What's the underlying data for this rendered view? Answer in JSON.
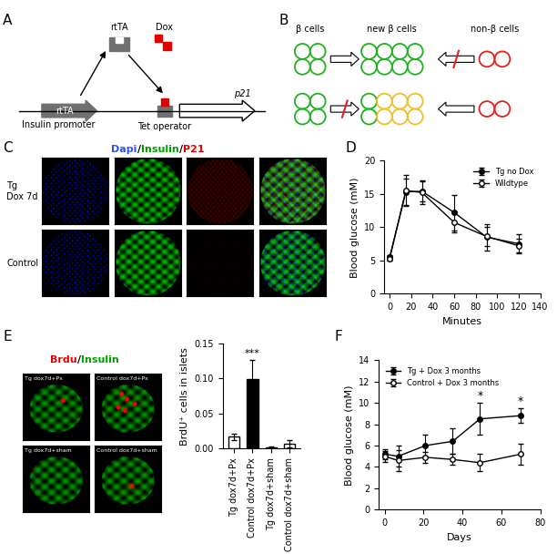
{
  "panel_labels": [
    "A",
    "B",
    "C",
    "D",
    "E",
    "F"
  ],
  "diagram_a": {
    "gene_box": "rtTA",
    "promoter_label": "Insulin promoter",
    "protein": "rtTA",
    "drug": "Dox",
    "operator_label": "Tet operator",
    "target_gene": "p21"
  },
  "diagram_b": {
    "labels": [
      "β cells",
      "new β cells",
      "non-β cells"
    ]
  },
  "image_panel_c": {
    "stain_title": [
      {
        "text": "Dapi",
        "color": "#3050ff"
      },
      {
        "text": "/",
        "color": "#000000"
      },
      {
        "text": "Insulin",
        "color": "#00a000"
      },
      {
        "text": "/",
        "color": "#000000"
      },
      {
        "text": "P21",
        "color": "#e00000"
      }
    ],
    "row_labels": [
      [
        "Tg",
        "Dox 7d"
      ],
      [
        "Control"
      ]
    ]
  },
  "image_panel_e": {
    "stain_title": [
      {
        "text": "Brdu",
        "color": "#e00000"
      },
      {
        "text": "/",
        "color": "#000000"
      },
      {
        "text": "Insulin",
        "color": "#00a000"
      }
    ],
    "image_labels": [
      "Tg dox7d+Px",
      "Control dox7d+Px",
      "Tg dox7d+sham",
      "Control dox7d+sham"
    ]
  },
  "chart_data": [
    {
      "type": "line",
      "xlabel": "Minutes",
      "ylabel": "Blood glucose (mM)",
      "x": [
        0,
        15,
        30,
        60,
        90,
        120
      ],
      "series": [
        {
          "name": "Tg no Dox",
          "color": "#000000",
          "marker": "filled_circle",
          "values": [
            5.5,
            15.3,
            15.4,
            12.2,
            8.5,
            7.5
          ],
          "errors": [
            0.3,
            2.0,
            1.5,
            2.7,
            2.0,
            1.5
          ]
        },
        {
          "name": "Wildtype",
          "color": "#000000",
          "marker": "open_circle",
          "values": [
            5.3,
            15.5,
            15.2,
            10.7,
            8.6,
            7.2
          ],
          "errors": [
            0.3,
            2.3,
            1.8,
            1.5,
            1.5,
            1.0
          ]
        }
      ],
      "xlim": [
        -5,
        140
      ],
      "ylim": [
        0,
        20
      ],
      "xticks": [
        0,
        20,
        40,
        60,
        80,
        100,
        120,
        140
      ],
      "yticks": [
        0,
        5,
        10,
        15,
        20
      ],
      "legend": "upper right"
    },
    {
      "type": "bar",
      "ylabel": "BrdU⁺ cells in islets",
      "categories": [
        "Tg dox7d+Px",
        "Control dox7d+Px",
        "Tg dox7d+sham",
        "Control dox7d+sham"
      ],
      "values": [
        0.017,
        0.099,
        0.002,
        0.007
      ],
      "errors": [
        0.005,
        0.028,
        0.001,
        0.005
      ],
      "colors": [
        "#ffffff",
        "#000000",
        "#ffffff",
        "#ffffff"
      ],
      "ylim": [
        0,
        0.15
      ],
      "yticks": [
        {
          "value": 0,
          "label": "0.00"
        },
        {
          "value": 0.05,
          "label": "0.05"
        },
        {
          "value": 0.1,
          "label": "0.10"
        },
        {
          "value": 0.15,
          "label": "0.15"
        }
      ],
      "annotations": [
        {
          "text": "***",
          "category": "Control dox7d+Px"
        }
      ]
    },
    {
      "type": "line",
      "xlabel": "Days",
      "ylabel": "Blood glucose (mM)",
      "x": [
        0,
        7,
        21,
        35,
        49,
        70
      ],
      "series": [
        {
          "name": "Tg + Dox 3 months",
          "color": "#000000",
          "marker": "filled_circle",
          "values": [
            5.2,
            5.0,
            6.0,
            6.4,
            8.5,
            8.8
          ],
          "errors": [
            0.5,
            1.0,
            1.0,
            1.2,
            1.5,
            0.7
          ]
        },
        {
          "name": "Control + Dox 3 months",
          "color": "#000000",
          "marker": "open_circle",
          "values": [
            5.0,
            4.6,
            4.9,
            4.7,
            4.4,
            5.2
          ],
          "errors": [
            0.5,
            1.0,
            0.5,
            0.5,
            0.8,
            1.0
          ]
        }
      ],
      "xlim": [
        -3,
        80
      ],
      "ylim": [
        0,
        14
      ],
      "xticks": [
        0,
        20,
        40,
        60,
        80
      ],
      "yticks": [
        0,
        2,
        4,
        6,
        8,
        10,
        12,
        14
      ],
      "legend": "upper left",
      "annotations": [
        {
          "text": "*",
          "series": "Tg + Dox 3 months",
          "x": 49
        },
        {
          "text": "*",
          "series": "Tg + Dox 3 months",
          "x": 70
        }
      ]
    }
  ]
}
